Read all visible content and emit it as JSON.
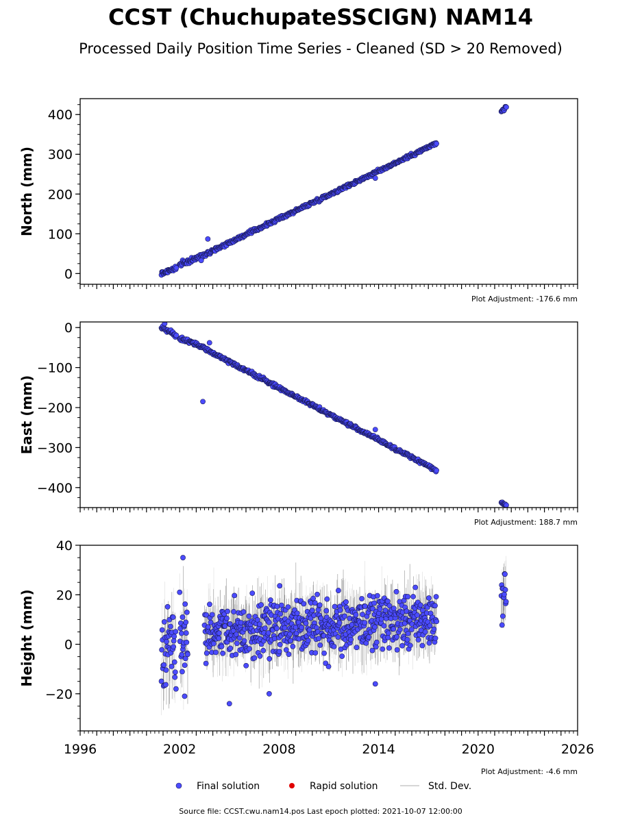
{
  "header": {
    "title": "CCST (ChuchupateSSCIGN) NAM14",
    "subtitle": "Processed Daily Position Time Series - Cleaned (SD > 20 Removed)"
  },
  "colors": {
    "final": "#4b4bff",
    "final_edge": "#1a1a55",
    "rapid": "#e00000",
    "stddev": "#c8c8c8",
    "stddev_dark": "#555555"
  },
  "chart_data": [
    {
      "type": "scatter",
      "ylabel": "North (mm)",
      "ylim": [
        -27,
        440
      ],
      "yticks": [
        0,
        100,
        200,
        300,
        400
      ],
      "xlim": [
        1996,
        2026
      ],
      "adjustment": "Plot Adjustment: -176.6 mm",
      "segments": [
        {
          "x0": 2000.9,
          "x1": 2001.8,
          "y0": 0,
          "y1": 14,
          "noise": 4
        },
        {
          "x0": 2002.0,
          "x1": 2003.0,
          "y0": 22,
          "y1": 38,
          "noise": 4
        },
        {
          "x0": 2003.0,
          "x1": 2017.5,
          "y0": 38,
          "y1": 328,
          "noise": 3
        },
        {
          "x0": 2021.4,
          "x1": 2021.7,
          "y0": 408,
          "y1": 418,
          "noise": 3
        }
      ],
      "outliers": [
        [
          2003.7,
          87
        ],
        [
          2003.3,
          33
        ],
        [
          2013.8,
          240
        ]
      ]
    },
    {
      "type": "scatter",
      "ylabel": "East (mm)",
      "ylim": [
        -450,
        14
      ],
      "yticks": [
        0,
        -100,
        -200,
        -300,
        -400
      ],
      "ytick_labels": [
        "0",
        "−100",
        "−200",
        "−300",
        "−400"
      ],
      "xlim": [
        1996,
        2026
      ],
      "adjustment": "Plot Adjustment: 188.7 mm",
      "segments": [
        {
          "x0": 2000.9,
          "x1": 2001.8,
          "y0": 0,
          "y1": -20,
          "noise": 4
        },
        {
          "x0": 2002.0,
          "x1": 2003.0,
          "y0": -28,
          "y1": -42,
          "noise": 4
        },
        {
          "x0": 2003.0,
          "x1": 2017.5,
          "y0": -42,
          "y1": -357,
          "noise": 3
        },
        {
          "x0": 2021.4,
          "x1": 2021.7,
          "y0": -437,
          "y1": -445,
          "noise": 2
        }
      ],
      "outliers": [
        [
          2003.4,
          -185
        ],
        [
          2001.1,
          10
        ],
        [
          2013.8,
          -255
        ],
        [
          2003.8,
          -38
        ]
      ]
    },
    {
      "type": "scatter",
      "ylabel": "Height (mm)",
      "ylim": [
        -35,
        40
      ],
      "yticks": [
        -20,
        0,
        20,
        40
      ],
      "ytick_labels": [
        "−20",
        "0",
        "20",
        "40"
      ],
      "xlim": [
        1996,
        2026
      ],
      "xticks": [
        1996,
        2002,
        2008,
        2014,
        2020,
        2026
      ],
      "adjustment": "Plot Adjustment: -4.6 mm",
      "segments": [
        {
          "x0": 2000.9,
          "x1": 2001.8,
          "y0": 0,
          "y1": 0,
          "noise": 13
        },
        {
          "x0": 2002.0,
          "x1": 2002.5,
          "y0": 5,
          "y1": 5,
          "noise": 12
        },
        {
          "x0": 2003.5,
          "x1": 2017.5,
          "y0": 5,
          "y1": 10,
          "noise": 8
        },
        {
          "x0": 2021.4,
          "x1": 2021.7,
          "y0": 18,
          "y1": 22,
          "noise": 6
        }
      ],
      "outliers": [
        [
          2002.2,
          35
        ],
        [
          2002.3,
          -21
        ],
        [
          2005.0,
          -24
        ],
        [
          2007.4,
          -20
        ],
        [
          2013.8,
          -16
        ]
      ]
    }
  ],
  "legend": {
    "items": [
      "Final solution",
      "Rapid solution",
      "Std. Dev."
    ],
    "placement": "bottom-center"
  },
  "footer": {
    "source": "Source file: CCST.cwu.nam14.pos  Last epoch plotted: 2021-10-07 12:00:00"
  }
}
